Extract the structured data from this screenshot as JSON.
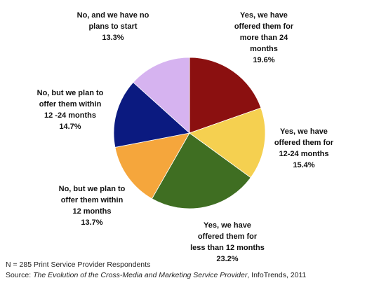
{
  "chart_data": {
    "type": "pie",
    "slices": [
      {
        "label_lines": [
          "Yes, we have",
          "offered them for",
          "more than 24",
          "months"
        ],
        "value": 19.6,
        "value_label": "19.6%",
        "color": "#8b1010"
      },
      {
        "label_lines": [
          "Yes, we have",
          "offered them for",
          "12-24 months"
        ],
        "value": 15.4,
        "value_label": "15.4%",
        "color": "#f5d050"
      },
      {
        "label_lines": [
          "Yes, we have",
          "offered them for",
          "less than 12 months"
        ],
        "value": 23.2,
        "value_label": "23.2%",
        "color": "#3f6e22"
      },
      {
        "label_lines": [
          "No, but we plan to",
          "offer them within",
          "12 months"
        ],
        "value": 13.7,
        "value_label": "13.7%",
        "color": "#f5a63c"
      },
      {
        "label_lines": [
          "No, but we plan to",
          "offer them within",
          "12 -24 months"
        ],
        "value": 14.7,
        "value_label": "14.7%",
        "color": "#0b1a80"
      },
      {
        "label_lines": [
          "No, and we have no",
          "plans to start"
        ],
        "value": 13.3,
        "value_label": "13.3%",
        "color": "#d6b3f0"
      }
    ]
  },
  "footnote": {
    "respondents": "N = 285 Print Service Provider Respondents",
    "source_prefix": "Source: ",
    "source_title": "The Evolution of the Cross-Media and Marketing Service Provider",
    "source_suffix": ", InfoTrends, 2011"
  }
}
